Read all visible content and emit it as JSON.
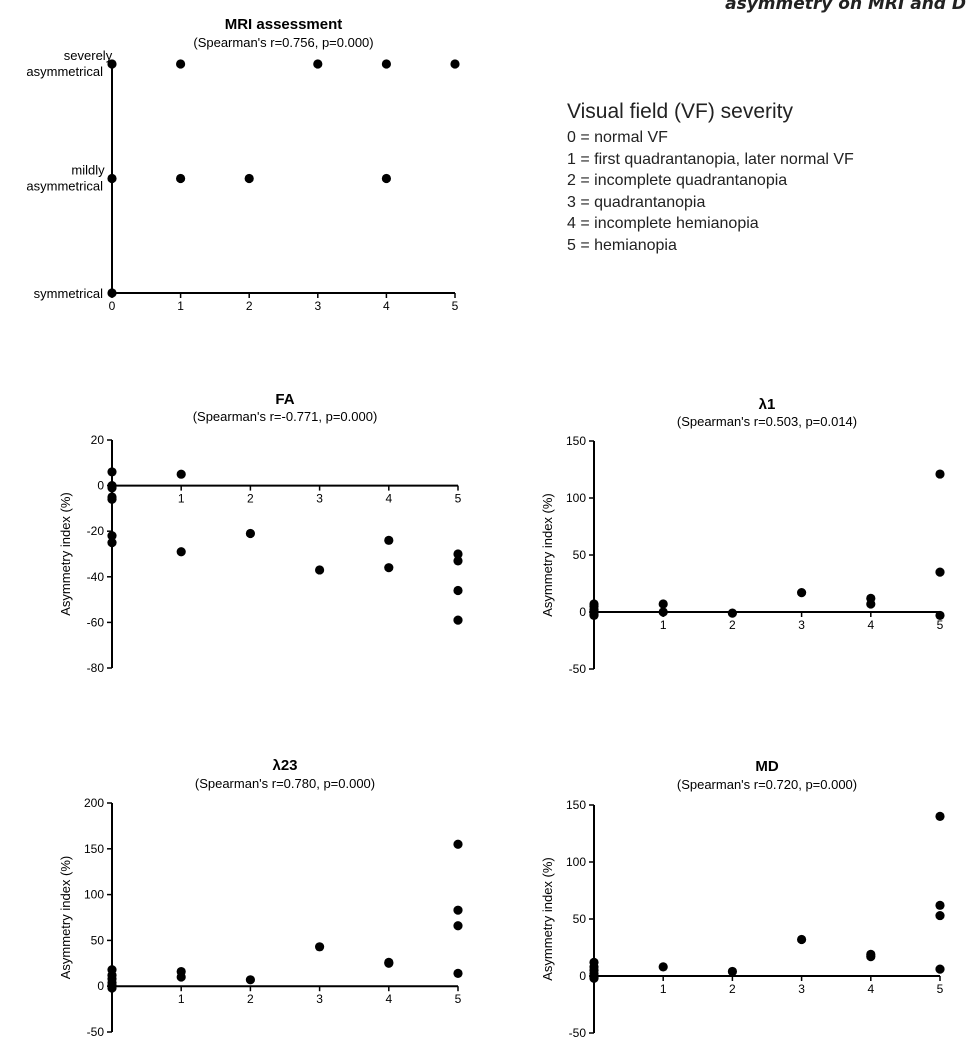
{
  "header_fragment": "asymmetry on MRI and D",
  "legend": {
    "title": "Visual field (VF) severity",
    "items": [
      "0 = normal VF",
      "1 = first quadrantanopia, later normal VF",
      "2 = incomplete quadrantanopia",
      "3 = quadrantanopia",
      "4 = incomplete hemianopia",
      "5 = hemianopia"
    ]
  },
  "chart_data": [
    {
      "type": "scatter",
      "title": "MRI assessment",
      "subtitle": "(Spearman's r=0.756, p=0.000)",
      "xlabel": "",
      "ylabel": "",
      "x_ticks": [
        0,
        1,
        2,
        3,
        4,
        5
      ],
      "y_categories": [
        "symmetrical",
        "mildly asymmetrical",
        "severely asymmetrical"
      ],
      "xlim": [
        0,
        5
      ],
      "ylim": [
        0,
        2
      ],
      "points": [
        [
          0,
          2
        ],
        [
          1,
          2
        ],
        [
          3,
          2
        ],
        [
          4,
          2
        ],
        [
          5,
          2
        ],
        [
          0,
          1
        ],
        [
          1,
          1
        ],
        [
          2,
          1
        ],
        [
          4,
          1
        ],
        [
          0,
          0
        ]
      ]
    },
    {
      "type": "scatter",
      "title": "FA",
      "subtitle": "(Spearman's r=-0.771, p=0.000)",
      "xlabel": "",
      "ylabel": "Asymmetry index (%)",
      "x_ticks": [
        1,
        2,
        3,
        4,
        5
      ],
      "y_ticks": [
        20,
        0,
        -20,
        -40,
        -60,
        -80
      ],
      "xlim": [
        0,
        5
      ],
      "ylim": [
        -80,
        20
      ],
      "points": [
        [
          0,
          6
        ],
        [
          0,
          0
        ],
        [
          0,
          -1
        ],
        [
          0,
          -5
        ],
        [
          0,
          -6
        ],
        [
          0,
          -22
        ],
        [
          0,
          -25
        ],
        [
          1,
          5
        ],
        [
          1,
          -29
        ],
        [
          2,
          -21
        ],
        [
          3,
          -37
        ],
        [
          4,
          -24
        ],
        [
          4,
          -36
        ],
        [
          5,
          -30
        ],
        [
          5,
          -33
        ],
        [
          5,
          -46
        ],
        [
          5,
          -59
        ]
      ]
    },
    {
      "type": "scatter",
      "title": "λ1",
      "subtitle": "(Spearman's r=0.503, p=0.014)",
      "xlabel": "",
      "ylabel": "Asymmetry index (%)",
      "x_ticks": [
        1,
        2,
        3,
        4,
        5
      ],
      "y_ticks": [
        150,
        100,
        50,
        0,
        -50
      ],
      "xlim": [
        0,
        5
      ],
      "ylim": [
        -50,
        150
      ],
      "points": [
        [
          0,
          7
        ],
        [
          0,
          5
        ],
        [
          0,
          2
        ],
        [
          0,
          0
        ],
        [
          0,
          -2
        ],
        [
          0,
          -3
        ],
        [
          1,
          7
        ],
        [
          1,
          0
        ],
        [
          2,
          -1
        ],
        [
          3,
          17
        ],
        [
          4,
          12
        ],
        [
          4,
          7
        ],
        [
          5,
          121
        ],
        [
          5,
          35
        ],
        [
          5,
          -3
        ]
      ]
    },
    {
      "type": "scatter",
      "title": "λ23",
      "subtitle": "(Spearman's r=0.780, p=0.000)",
      "xlabel": "",
      "ylabel": "Asymmetry index (%)",
      "x_ticks": [
        1,
        2,
        3,
        4,
        5
      ],
      "y_ticks": [
        200,
        150,
        100,
        50,
        0,
        -50
      ],
      "xlim": [
        0,
        5
      ],
      "ylim": [
        -50,
        200
      ],
      "points": [
        [
          0,
          18
        ],
        [
          0,
          12
        ],
        [
          0,
          8
        ],
        [
          0,
          4
        ],
        [
          0,
          1
        ],
        [
          0,
          -2
        ],
        [
          1,
          16
        ],
        [
          1,
          10
        ],
        [
          2,
          7
        ],
        [
          3,
          43
        ],
        [
          4,
          26
        ],
        [
          4,
          25
        ],
        [
          5,
          155
        ],
        [
          5,
          83
        ],
        [
          5,
          66
        ],
        [
          5,
          14
        ]
      ]
    },
    {
      "type": "scatter",
      "title": "MD",
      "subtitle": "(Spearman's r=0.720, p=0.000)",
      "xlabel": "",
      "ylabel": "Asymmetry index (%)",
      "x_ticks": [
        1,
        2,
        3,
        4,
        5
      ],
      "y_ticks": [
        150,
        100,
        50,
        0,
        -50
      ],
      "xlim": [
        0,
        5
      ],
      "ylim": [
        -50,
        150
      ],
      "points": [
        [
          0,
          12
        ],
        [
          0,
          8
        ],
        [
          0,
          5
        ],
        [
          0,
          2
        ],
        [
          0,
          -1
        ],
        [
          0,
          -2
        ],
        [
          1,
          8
        ],
        [
          2,
          4
        ],
        [
          3,
          32
        ],
        [
          4,
          19
        ],
        [
          4,
          17
        ],
        [
          5,
          140
        ],
        [
          5,
          62
        ],
        [
          5,
          53
        ],
        [
          5,
          6
        ]
      ]
    }
  ]
}
